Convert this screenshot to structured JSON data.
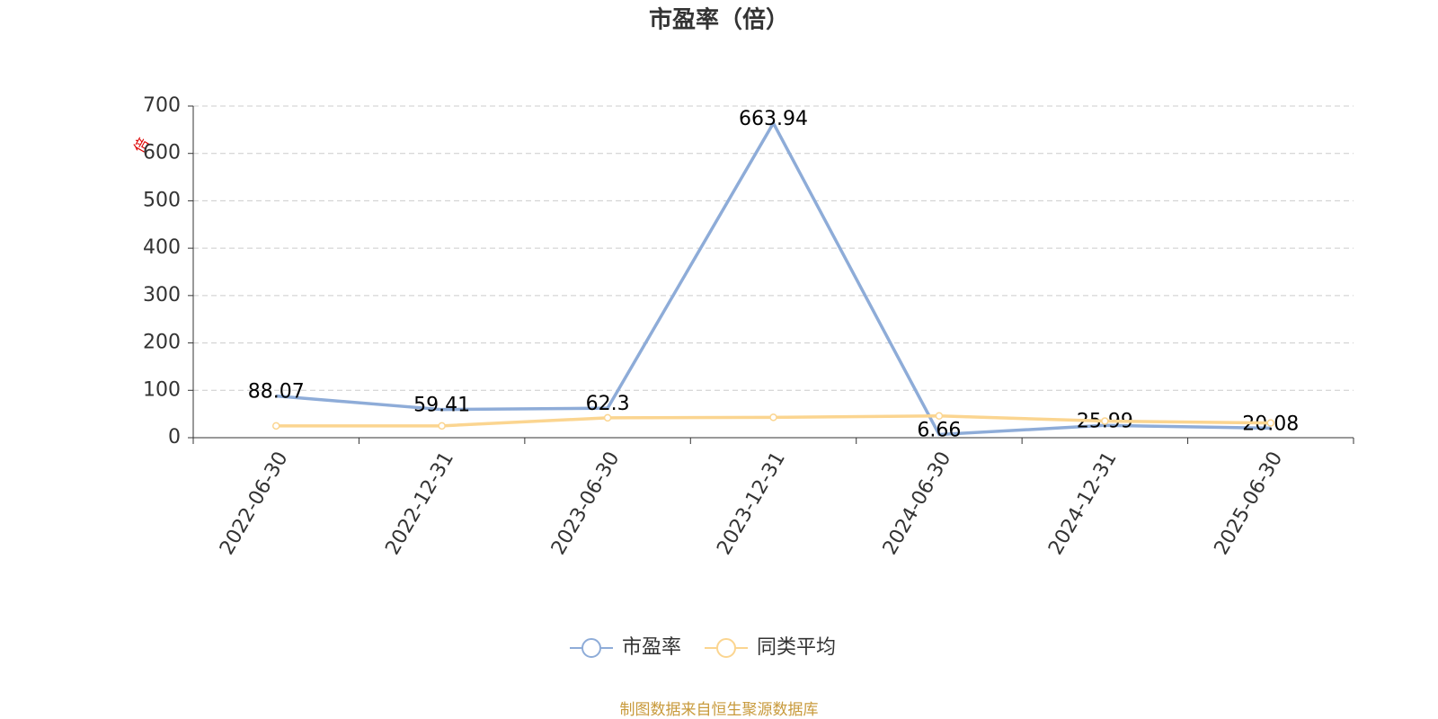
{
  "chart_data": {
    "type": "line",
    "title": "市盈率（倍）",
    "y_label": "倍",
    "categories": [
      "2022-06-30",
      "2022-12-31",
      "2023-06-30",
      "2023-12-31",
      "2024-06-30",
      "2024-12-31",
      "2025-06-30"
    ],
    "series": [
      {
        "name": "市盈率",
        "color": "#8eacd8",
        "values": [
          88.07,
          59.41,
          62.3,
          663.94,
          6.66,
          25.99,
          20.08
        ],
        "show_labels": true
      },
      {
        "name": "同类平均",
        "color": "#fbd590",
        "values": [
          25,
          25,
          42,
          43,
          46,
          35,
          31
        ],
        "show_labels": false
      }
    ],
    "ylim": [
      0,
      700
    ],
    "yticks": [
      0,
      100,
      200,
      300,
      400,
      500,
      600,
      700
    ],
    "grid": true,
    "legend": "bottom",
    "footer": "制图数据来自恒生聚源数据库"
  }
}
